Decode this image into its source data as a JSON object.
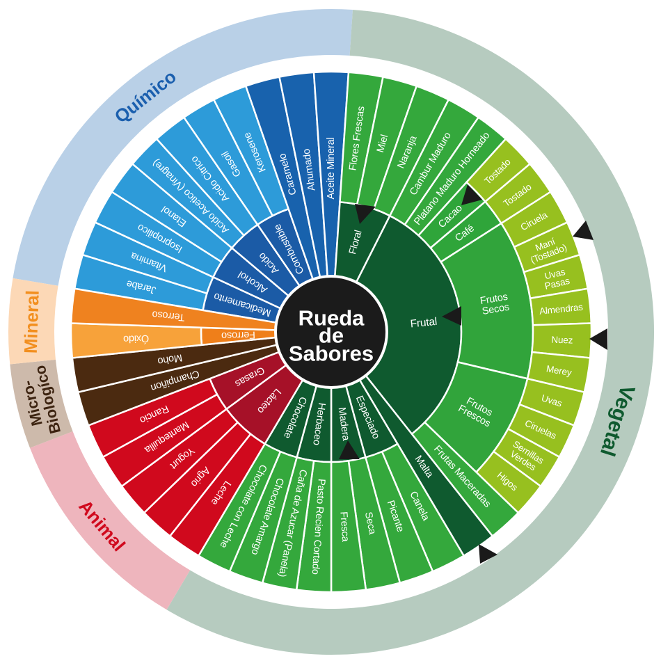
{
  "title": {
    "lines": [
      "Rueda",
      "de",
      "Sabores"
    ]
  },
  "center_color": "#1b1b1b",
  "marker_color": "#1a1a1a",
  "categories": [
    {
      "name": "Químico",
      "ring_color": "#b9d0e7",
      "text_color": "#1b5fae",
      "children": [
        {
          "label": "Medicamento",
          "color": "#1b5ba6",
          "children": [
            {
              "label": "Jarabe",
              "color": "#2d9bd9"
            },
            {
              "label": "Vitamina",
              "color": "#2d9bd9"
            }
          ]
        },
        {
          "label": "Alcohol",
          "color": "#1b5ba6",
          "children": [
            {
              "label": "Isopropilico",
              "color": "#2d9bd9"
            },
            {
              "label": "Etanol",
              "color": "#2d9bd9"
            }
          ]
        },
        {
          "label": "Acido",
          "color": "#1b5ba6",
          "children": [
            {
              "label": "Acido Acetico (Vinagre)",
              "color": "#2d9bd9"
            },
            {
              "label": "Acido Citrico",
              "color": "#2d9bd9"
            }
          ]
        },
        {
          "label": "Combustible",
          "color": "#1b5ba6",
          "children": [
            {
              "label": "Gasoil",
              "color": "#2d9bd9"
            },
            {
              "label": "Kerosene",
              "color": "#2d9bd9"
            }
          ]
        },
        {
          "label": "Caramelo",
          "color": "#1862ad"
        },
        {
          "label": "Ahumado",
          "color": "#1862ad"
        },
        {
          "label": "Aceite Mineral",
          "color": "#1862ad"
        }
      ]
    },
    {
      "name": "Vegetal",
      "ring_color": "#b6cbbf",
      "text_color": "#0f5a2f",
      "children": [
        {
          "label": "Floral",
          "color": "#0f5a2f",
          "children": [
            {
              "label": "Flores Frescas",
              "color": "#34a83c"
            },
            {
              "label": "Miel",
              "color": "#34a83c"
            },
            {
              "label": "Naranja",
              "color": "#34a83c"
            }
          ]
        },
        {
          "label": "Frutal",
          "color": "#0f5a2f",
          "children": [
            {
              "label": "Cambur Maduro",
              "color": "#34a83c"
            },
            {
              "label": "Platano Maduro Horneado",
              "color": "#34a83c"
            },
            {
              "label": "Cacao",
              "color": "#2fa53a",
              "children": [
                {
                  "label": "Tostado",
                  "color": "#97c01f"
                }
              ]
            },
            {
              "label": "Café",
              "color": "#2fa53a",
              "children": [
                {
                  "label": "Tostado",
                  "color": "#97c01f"
                }
              ]
            },
            {
              "label": "Frutos\nSecos",
              "color": "#31a43b",
              "children": [
                {
                  "label": "Ciruela",
                  "color": "#97c01f"
                },
                {
                  "label": "Maní\n(Tostado)",
                  "color": "#97c01f"
                },
                {
                  "label": "Uvas\nPasas",
                  "color": "#97c01f"
                },
                {
                  "label": "Almendras",
                  "color": "#97c01f"
                },
                {
                  "label": "Nuez",
                  "color": "#97c01f"
                },
                {
                  "label": "Merey",
                  "color": "#97c01f"
                }
              ]
            },
            {
              "label": "Frutos\nFrescos",
              "color": "#31a43b",
              "children": [
                {
                  "label": "Uvas",
                  "color": "#97c01f"
                },
                {
                  "label": "Ciruelas",
                  "color": "#97c01f"
                },
                {
                  "label": "Semillas\nVerdes",
                  "color": "#97c01f"
                },
                {
                  "label": "Higos",
                  "color": "#97c01f"
                }
              ]
            },
            {
              "label": "Frutas Maceradas",
              "color": "#34a83c"
            }
          ]
        },
        {
          "label": "Malta",
          "color": "#0f5a2f"
        },
        {
          "label": "Especiado",
          "color": "#0f5a2f",
          "children": [
            {
              "label": "Canela",
              "color": "#34a83c"
            },
            {
              "label": "Picante",
              "color": "#34a83c"
            }
          ]
        },
        {
          "label": "Madera",
          "color": "#0f5a2f",
          "children": [
            {
              "label": "Seca",
              "color": "#34a83c"
            },
            {
              "label": "Fresca",
              "color": "#34a83c"
            }
          ]
        },
        {
          "label": "Herbaceo",
          "color": "#0f5a2f",
          "children": [
            {
              "label": "Pasto Recien Cortado",
              "color": "#34a83c"
            },
            {
              "label": "Caña de Azucar (Panela)",
              "color": "#34a83c"
            }
          ]
        },
        {
          "label": "Chocolate",
          "color": "#0f5a2f",
          "children": [
            {
              "label": "Chocolate Amargo",
              "color": "#34a83c"
            },
            {
              "label": "Chocolate con Leche",
              "color": "#34a83c"
            }
          ]
        }
      ]
    },
    {
      "name": "Animal",
      "ring_color": "#eeb5bd",
      "text_color": "#d0091d",
      "children": [
        {
          "label": "Lácteo",
          "color": "#a61128",
          "children": [
            {
              "label": "Leche",
              "color": "#d0091d"
            },
            {
              "label": "Agrio",
              "color": "#d0091d"
            },
            {
              "label": "Yogurt",
              "color": "#d0091d"
            }
          ]
        },
        {
          "label": "Grasas",
          "color": "#a61128",
          "children": [
            {
              "label": "Mantequilla",
              "color": "#d0091d"
            },
            {
              "label": "Rancio",
              "color": "#d0091d"
            }
          ]
        }
      ]
    },
    {
      "name": "Micro-\nBiologíco",
      "ring_color": "#cdbaab",
      "text_color": "#3d2411",
      "children": [
        {
          "label": "Champiñon",
          "color": "#4b2a10"
        },
        {
          "label": "Moho",
          "color": "#4b2a10"
        }
      ]
    },
    {
      "name": "Mineral",
      "ring_color": "#fcd8b6",
      "text_color": "#f28f1f",
      "children": [
        {
          "label": "Ferroso",
          "color": "#ef7f1a",
          "children": [
            {
              "label": "Óxido",
              "color": "#f7a23a"
            }
          ]
        },
        {
          "label": "Terroso",
          "color": "#ef821f"
        }
      ]
    }
  ]
}
